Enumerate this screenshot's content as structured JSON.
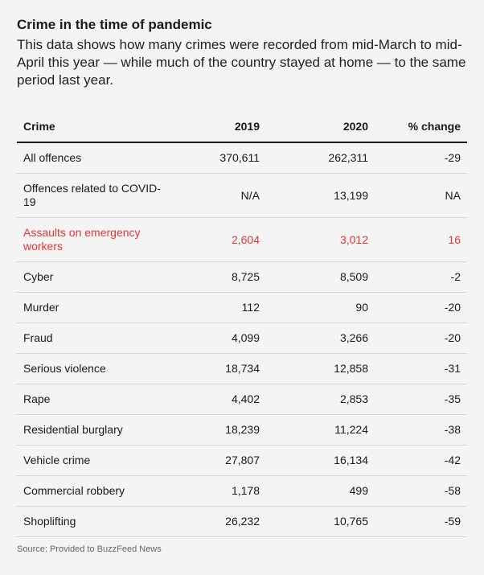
{
  "title": "Crime in the time of pandemic",
  "subtitle": "This data shows how many crimes were recorded from mid-March to mid-April this year — while much of the country stayed at home — to the same period last year.",
  "source": "Source: Provided to BuzzFeed News",
  "colors": {
    "highlight": "#e8352f",
    "background": "#f4f4f4"
  },
  "chart_data": {
    "type": "table",
    "columns": [
      "Crime",
      "2019",
      "2020",
      "% change"
    ],
    "rows": [
      [
        "All offences",
        "370,611",
        "262,311",
        "-29"
      ],
      [
        "Offences related to COVID-19",
        "N/A",
        "13,199",
        "NA"
      ],
      [
        "Assaults on emergency workers",
        "2,604",
        "3,012",
        "16"
      ],
      [
        "Cyber",
        "8,725",
        "8,509",
        "-2"
      ],
      [
        "Murder",
        "112",
        "90",
        "-20"
      ],
      [
        "Fraud",
        "4,099",
        "3,266",
        "-20"
      ],
      [
        "Serious violence",
        "18,734",
        "12,858",
        "-31"
      ],
      [
        "Rape",
        "4,402",
        "2,853",
        "-35"
      ],
      [
        "Residential burglary",
        "18,239",
        "11,224",
        "-38"
      ],
      [
        "Vehicle crime",
        "27,807",
        "16,134",
        "-42"
      ],
      [
        "Commercial robbery",
        "1,178",
        "499",
        "-58"
      ],
      [
        "Shoplifting",
        "26,232",
        "10,765",
        "-59"
      ]
    ],
    "highlighted_row": 2
  }
}
